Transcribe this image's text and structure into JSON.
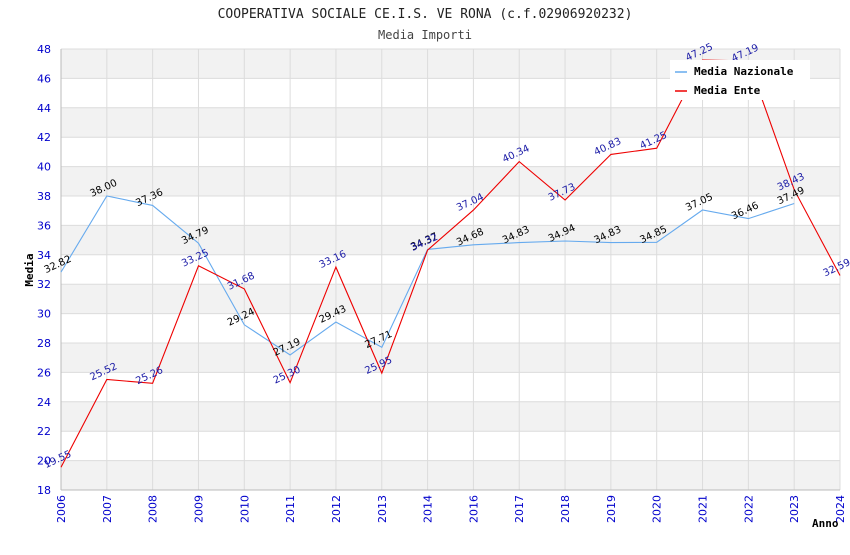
{
  "chart_data": {
    "type": "line",
    "title": "COOPERATIVA SOCIALE CE.I.S. VE RONA (c.f.02906920232)",
    "subtitle": "Media Importi",
    "xlabel": "Anno",
    "ylabel": "Media",
    "categories": [
      "2006",
      "2007",
      "2008",
      "2009",
      "2010",
      "2011",
      "2012",
      "2013",
      "2014",
      "2016",
      "2017",
      "2018",
      "2019",
      "2020",
      "2021",
      "2022",
      "2023",
      "2024"
    ],
    "ylim": [
      18,
      48
    ],
    "yticks": [
      18,
      20,
      22,
      24,
      26,
      28,
      30,
      32,
      34,
      36,
      38,
      40,
      42,
      44,
      46,
      48
    ],
    "grid": true,
    "legend_position": "top-right",
    "series": [
      {
        "name": "Media Nazionale",
        "color": "#66aaee",
        "values": [
          32.82,
          38.0,
          37.36,
          34.79,
          29.24,
          27.19,
          29.43,
          27.71,
          34.37,
          34.68,
          34.83,
          34.94,
          34.83,
          34.85,
          37.05,
          36.46,
          37.49,
          null
        ],
        "labels": [
          "32.82",
          "38.00",
          "37.36",
          "34.79",
          "29.24",
          "27.19",
          "29.43",
          "27.71",
          "34.37",
          "34.68",
          "34.83",
          "34.94",
          "34.83",
          "34.85",
          "37.05",
          "36.46",
          "37.49",
          ""
        ]
      },
      {
        "name": "Media Ente",
        "color": "#ee0000",
        "values": [
          19.55,
          25.52,
          25.26,
          33.25,
          31.68,
          25.3,
          33.16,
          25.95,
          34.32,
          37.04,
          40.34,
          37.73,
          40.83,
          41.25,
          47.25,
          47.19,
          38.43,
          32.59
        ],
        "labels": [
          "19.55",
          "25.52",
          "25.26",
          "33.25",
          "31.68",
          "25.30",
          "33.16",
          "25.95",
          "34.32",
          "37.04",
          "40.34",
          "37.73",
          "40.83",
          "41.25",
          "47.25",
          "47.19",
          "38.43",
          "32.59"
        ]
      }
    ]
  }
}
